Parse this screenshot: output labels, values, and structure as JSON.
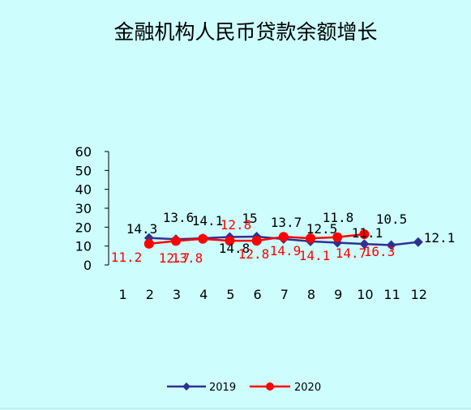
{
  "chart_data": {
    "type": "line",
    "title": "金融机构人民币贷款余额增长",
    "categories": [
      "1",
      "2",
      "3",
      "4",
      "5",
      "6",
      "7",
      "8",
      "9",
      "10",
      "11",
      "12"
    ],
    "y_ticks": [
      "0",
      "10",
      "20",
      "30",
      "40",
      "50",
      "60"
    ],
    "ylim": [
      0,
      60
    ],
    "grid": false,
    "legend_position": "bottom",
    "series": [
      {
        "name": "2019",
        "color": "#2e3192",
        "marker": "diamond",
        "values": [
          null,
          14.3,
          13.6,
          14.1,
          14.8,
          15,
          13.7,
          12.5,
          11.8,
          11.1,
          10.5,
          12.1
        ],
        "labels": [
          "",
          "14.3",
          "13.6",
          "14.1",
          "14.8",
          "15",
          "13.7",
          "12.5",
          "11.8",
          "11.1",
          "10.5",
          "12.1"
        ]
      },
      {
        "name": "2020",
        "color": "#ff0000",
        "marker": "circle",
        "values": [
          null,
          11.2,
          12.7,
          13.8,
          12.8,
          12.8,
          14.9,
          14.1,
          14.7,
          16.3,
          null,
          null
        ],
        "labels": [
          "",
          "11.2",
          "12.7",
          "13.8",
          "12.8",
          "12.8",
          "14.9",
          "14.1",
          "14.7",
          "16.3",
          "",
          ""
        ]
      }
    ]
  }
}
